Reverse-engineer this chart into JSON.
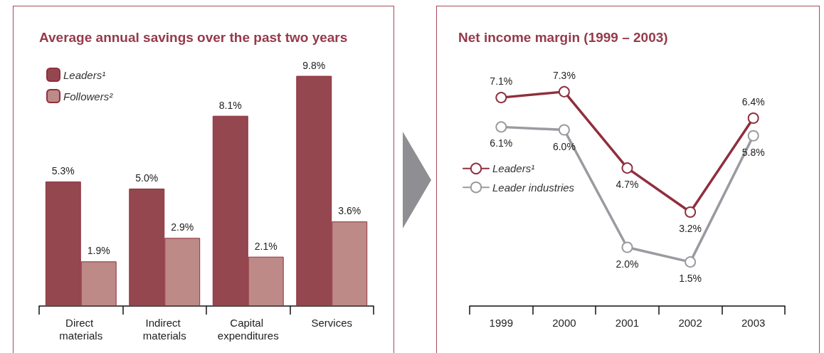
{
  "chart_data": [
    {
      "type": "bar",
      "title": "Average annual savings over the past two years",
      "categories": [
        "Direct materials",
        "Indirect materials",
        "Capital expenditures",
        "Services"
      ],
      "series": [
        {
          "name": "Leaders¹",
          "color": "#94474f",
          "values": [
            5.3,
            5.0,
            8.1,
            9.8
          ],
          "value_labels": [
            "5.3%",
            "5.0%",
            "8.1%",
            "9.8%"
          ]
        },
        {
          "name": "Followers²",
          "color": "#bd8a87",
          "values": [
            1.9,
            2.9,
            2.1,
            3.6
          ],
          "value_labels": [
            "1.9%",
            "2.9%",
            "2.1%",
            "3.6%"
          ]
        }
      ],
      "legend": "top left",
      "grid": false,
      "tick_labels": "x"
    },
    {
      "type": "line",
      "title": "Net income margin (1999 – 2003)",
      "categories": [
        "1999",
        "2000",
        "2001",
        "2002",
        "2003"
      ],
      "series": [
        {
          "name": "Leaders¹",
          "color": "#8f2f3e",
          "values": [
            7.1,
            7.3,
            4.7,
            3.2,
            6.4
          ],
          "value_labels": [
            "7.1%",
            "7.3%",
            "4.7%",
            "3.2%",
            "6.4%"
          ]
        },
        {
          "name": "Leader industries",
          "color": "#9a9aa0",
          "values": [
            6.1,
            6.0,
            2.0,
            1.5,
            5.8
          ],
          "value_labels": [
            "6.1%",
            "6.0%",
            "2.0%",
            "1.5%",
            "5.8%"
          ]
        }
      ],
      "legend": "left",
      "grid": false,
      "tick_labels": "x",
      "marker": "circle",
      "line_style": "solid"
    }
  ]
}
